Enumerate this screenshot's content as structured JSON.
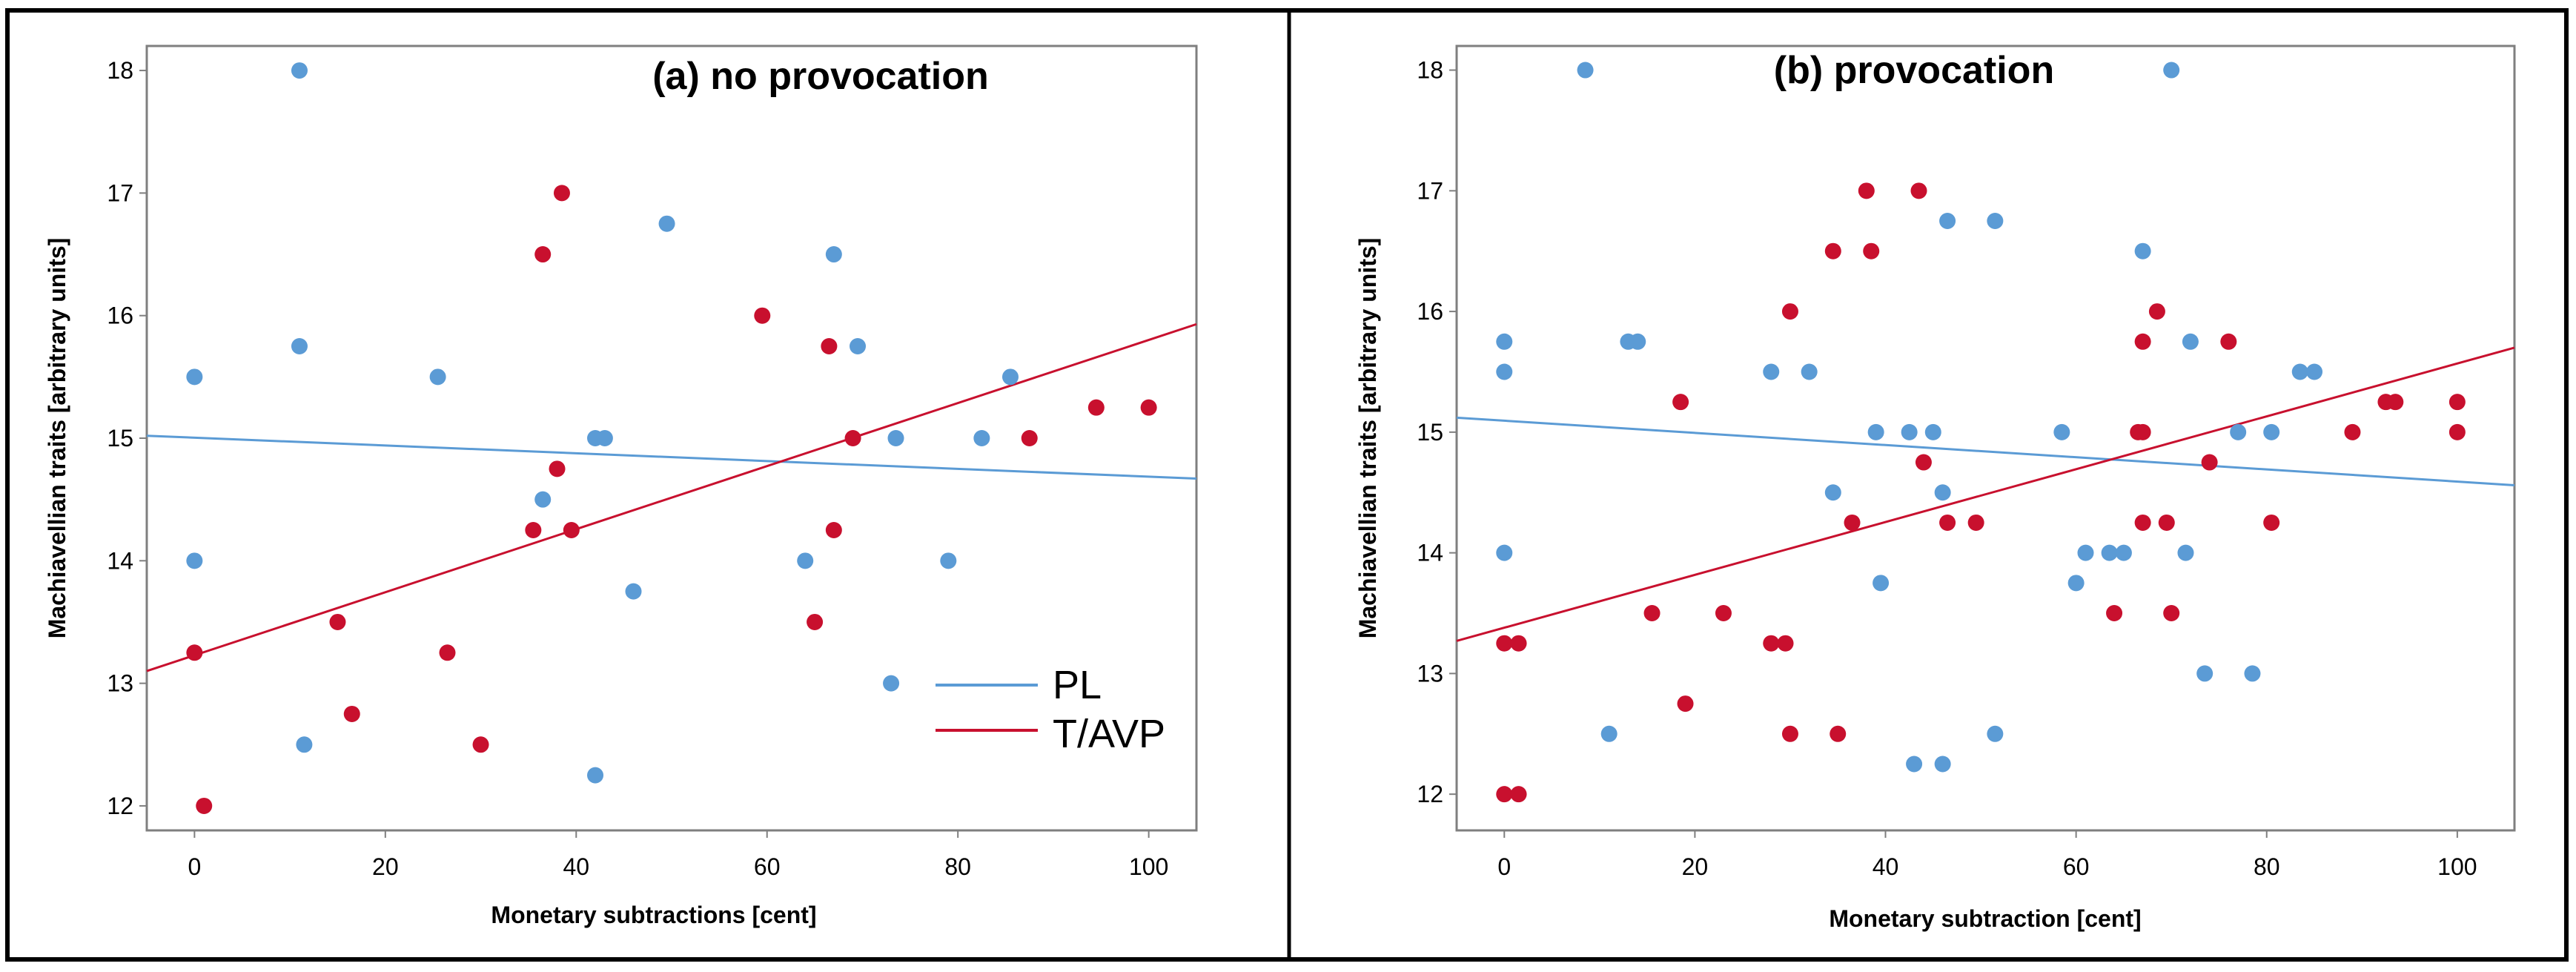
{
  "chart_data": [
    {
      "type": "scatter",
      "panel": "a",
      "title": "(a) no provocation",
      "xlabel": "Monetary subtractions [cent]",
      "ylabel": "Machiavellian traits [arbitrary units]",
      "xlim": [
        -5,
        105
      ],
      "ylim": [
        11.8,
        18.2
      ],
      "xticks": [
        0,
        20,
        40,
        60,
        80,
        100
      ],
      "yticks": [
        12,
        13,
        14,
        15,
        16,
        17,
        18
      ],
      "legend": {
        "placement": "bottom-right",
        "entries": [
          "PL",
          "T/AVP"
        ]
      },
      "series": [
        {
          "name": "PL",
          "color": "#5b9bd5",
          "points": [
            [
              11,
              18
            ],
            [
              0,
              15.5
            ],
            [
              11,
              15.75
            ],
            [
              25.5,
              15.5
            ],
            [
              0,
              14
            ],
            [
              11.5,
              12.5
            ],
            [
              36.5,
              14.5
            ],
            [
              42,
              15
            ],
            [
              43,
              15
            ],
            [
              42,
              12.25
            ],
            [
              46,
              13.75
            ],
            [
              49.5,
              16.75
            ],
            [
              64,
              14
            ],
            [
              67,
              16.5
            ],
            [
              69.5,
              15.75
            ],
            [
              73,
              13
            ],
            [
              73.5,
              15
            ],
            [
              79,
              14
            ],
            [
              82.5,
              15
            ],
            [
              85.5,
              15.5
            ]
          ],
          "fit": {
            "x": [
              -5,
              105
            ],
            "y": [
              15.02,
              14.67
            ]
          }
        },
        {
          "name": "T/AVP",
          "color": "#c8102e",
          "points": [
            [
              0,
              13.25
            ],
            [
              1,
              12
            ],
            [
              15,
              13.5
            ],
            [
              16.5,
              12.75
            ],
            [
              26.5,
              13.25
            ],
            [
              30,
              12.5
            ],
            [
              35.5,
              14.25
            ],
            [
              36.5,
              16.5
            ],
            [
              38,
              14.75
            ],
            [
              38.5,
              17
            ],
            [
              39.5,
              14.25
            ],
            [
              59.5,
              16
            ],
            [
              65,
              13.5
            ],
            [
              66.5,
              15.75
            ],
            [
              67,
              14.25
            ],
            [
              69,
              15
            ],
            [
              87.5,
              15
            ],
            [
              94.5,
              15.25
            ],
            [
              100,
              15.25
            ]
          ],
          "fit": {
            "x": [
              -5,
              105
            ],
            "y": [
              13.1,
              15.93
            ]
          }
        }
      ]
    },
    {
      "type": "scatter",
      "panel": "b",
      "title": "(b) provocation",
      "xlabel": "Monetary subtraction [cent]",
      "ylabel": "Machiavellian traits [arbitrary units]",
      "xlim": [
        -5,
        106
      ],
      "ylim": [
        11.7,
        18.2
      ],
      "xticks": [
        0,
        20,
        40,
        60,
        80,
        100
      ],
      "yticks": [
        12,
        13,
        14,
        15,
        16,
        17,
        18
      ],
      "series": [
        {
          "name": "PL",
          "color": "#5b9bd5",
          "points": [
            [
              8.5,
              18
            ],
            [
              0,
              15.75
            ],
            [
              0,
              15.5
            ],
            [
              13,
              15.75
            ],
            [
              14,
              15.75
            ],
            [
              0,
              14
            ],
            [
              11,
              12.5
            ],
            [
              28,
              15.5
            ],
            [
              32,
              15.5
            ],
            [
              34.5,
              14.5
            ],
            [
              39,
              15
            ],
            [
              39.5,
              13.75
            ],
            [
              42.5,
              15
            ],
            [
              45,
              15
            ],
            [
              46,
              14.5
            ],
            [
              46,
              12.25
            ],
            [
              46.5,
              16.75
            ],
            [
              43,
              12.25
            ],
            [
              51.5,
              16.75
            ],
            [
              51.5,
              12.5
            ],
            [
              58.5,
              15
            ],
            [
              60,
              13.75
            ],
            [
              61,
              14
            ],
            [
              63.5,
              14
            ],
            [
              65,
              14
            ],
            [
              67,
              16.5
            ],
            [
              70,
              18
            ],
            [
              71.5,
              14
            ],
            [
              72,
              15.75
            ],
            [
              73.5,
              13
            ],
            [
              77,
              15
            ],
            [
              78.5,
              13
            ],
            [
              80.5,
              15
            ],
            [
              83.5,
              15.5
            ],
            [
              85,
              15.5
            ]
          ],
          "fit": {
            "x": [
              -5,
              106
            ],
            "y": [
              15.12,
              14.56
            ]
          }
        },
        {
          "name": "T/AVP",
          "color": "#c8102e",
          "points": [
            [
              0,
              13.25
            ],
            [
              1.5,
              13.25
            ],
            [
              0,
              12
            ],
            [
              1.5,
              12
            ],
            [
              15.5,
              13.5
            ],
            [
              18.5,
              15.25
            ],
            [
              19,
              12.75
            ],
            [
              23,
              13.5
            ],
            [
              28,
              13.25
            ],
            [
              29.5,
              13.25
            ],
            [
              30,
              16
            ],
            [
              30,
              12.5
            ],
            [
              34.5,
              16.5
            ],
            [
              35,
              12.5
            ],
            [
              36.5,
              14.25
            ],
            [
              38,
              17
            ],
            [
              38.5,
              16.5
            ],
            [
              43.5,
              17
            ],
            [
              44,
              14.75
            ],
            [
              46.5,
              14.25
            ],
            [
              49.5,
              14.25
            ],
            [
              64,
              13.5
            ],
            [
              66.5,
              15
            ],
            [
              67,
              15
            ],
            [
              67,
              15.75
            ],
            [
              67,
              14.25
            ],
            [
              68.5,
              16
            ],
            [
              69.5,
              14.25
            ],
            [
              70,
              13.5
            ],
            [
              74,
              14.75
            ],
            [
              76,
              15.75
            ],
            [
              80.5,
              14.25
            ],
            [
              89,
              15
            ],
            [
              92.5,
              15.25
            ],
            [
              93.5,
              15.25
            ],
            [
              100,
              15.25
            ],
            [
              100,
              15
            ]
          ],
          "fit": {
            "x": [
              -5,
              106
            ],
            "y": [
              13.27,
              15.7
            ]
          }
        }
      ]
    }
  ]
}
